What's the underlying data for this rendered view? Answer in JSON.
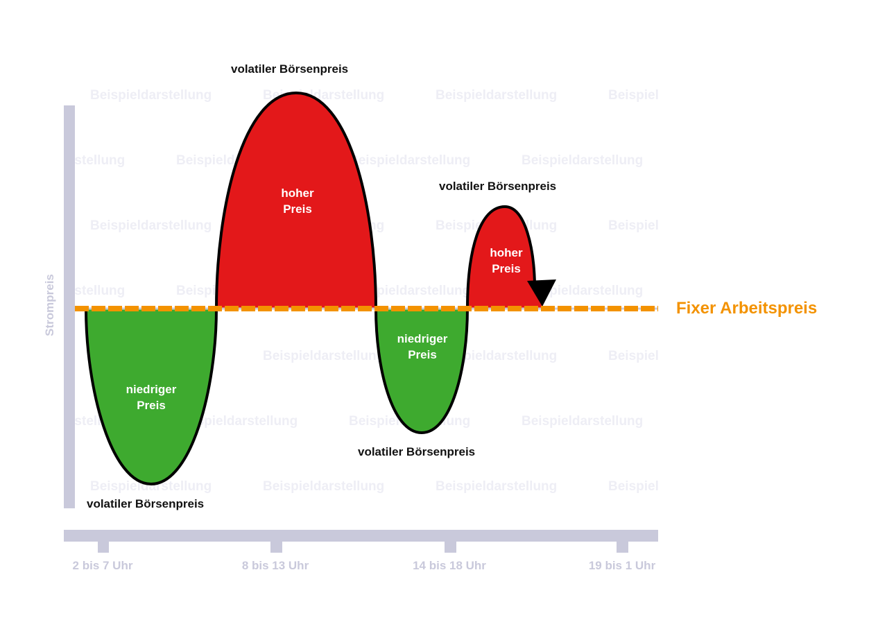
{
  "watermark": {
    "text": "Beispieldarstellung",
    "color": "#eeeef5"
  },
  "colors": {
    "axis": "#c9c9db",
    "high": "#e3181a",
    "low": "#3eaa2f",
    "fixed": "#f39200",
    "outline": "#000000"
  },
  "y_axis": {
    "label": "Strompreis"
  },
  "x_axis": {
    "ticks": [
      "2 bis 7 Uhr",
      "8 bis 13 Uhr",
      "14 bis 18 Uhr",
      "19 bis 1 Uhr"
    ]
  },
  "fixed_line": {
    "label": "Fixer Arbeitspreis"
  },
  "lobes": [
    {
      "kind": "low",
      "inside_line1": "niedriger",
      "inside_line2": "Preis",
      "caption": "volatiler Börsenpreis"
    },
    {
      "kind": "high",
      "inside_line1": "hoher",
      "inside_line2": "Preis",
      "caption": "volatiler Börsenpreis"
    },
    {
      "kind": "low",
      "inside_line1": "niedriger",
      "inside_line2": "Preis",
      "caption": "volatiler Börsenpreis"
    },
    {
      "kind": "high",
      "inside_line1": "hoher",
      "inside_line2": "Preis",
      "caption": "volatiler Börsenpreis"
    }
  ],
  "chart_data": {
    "type": "line",
    "title": "",
    "xlabel": "",
    "ylabel": "Strompreis",
    "categories": [
      "2 bis 7 Uhr",
      "8 bis 13 Uhr",
      "14 bis 18 Uhr",
      "19 bis 1 Uhr"
    ],
    "series": [
      {
        "name": "volatiler Börsenpreis",
        "values": [
          "niedriger Preis",
          "hoher Preis",
          "niedriger Preis",
          "hoher Preis"
        ]
      },
      {
        "name": "Fixer Arbeitspreis",
        "values": [
          "konstant",
          "konstant",
          "konstant",
          "konstant"
        ]
      }
    ],
    "annotations": [
      "volatiler Börsenpreis",
      "hoher Preis",
      "niedriger Preis",
      "Fixer Arbeitspreis",
      "Beispieldarstellung"
    ],
    "grid": false,
    "legend": "inline right of dashed line"
  }
}
